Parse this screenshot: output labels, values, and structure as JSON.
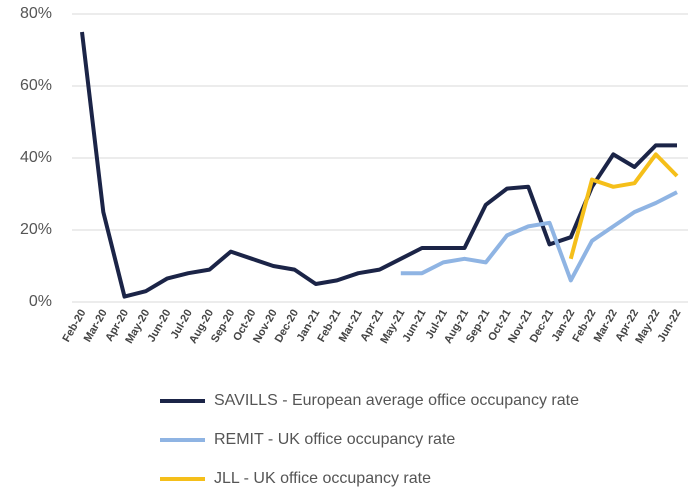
{
  "chart_data": {
    "type": "line",
    "categories": [
      "Feb-20",
      "Mar-20",
      "Apr-20",
      "May-20",
      "Jun-20",
      "Jul-20",
      "Aug-20",
      "Sep-20",
      "Oct-20",
      "Nov-20",
      "Dec-20",
      "Jan-21",
      "Feb-21",
      "Mar-21",
      "Apr-21",
      "May-21",
      "Jun-21",
      "Jul-21",
      "Aug-21",
      "Sep-21",
      "Oct-21",
      "Nov-21",
      "Dec-21",
      "Jan-22",
      "Feb-22",
      "Mar-22",
      "Apr-22",
      "May-22",
      "Jun-22"
    ],
    "series": [
      {
        "name": "SAVILLS - European average office occupancy rate",
        "color": "#1b2447",
        "values": [
          75,
          25,
          1.5,
          3,
          6.5,
          8,
          9,
          14,
          12,
          10,
          9,
          5,
          6,
          8,
          9,
          12,
          15,
          15,
          15,
          27,
          31.5,
          32,
          16,
          18,
          32,
          41,
          37.5,
          43.5,
          43.5
        ]
      },
      {
        "name": "REMIT - UK office occupancy rate",
        "color": "#8fb4e3",
        "values": [
          null,
          null,
          null,
          null,
          null,
          null,
          null,
          null,
          null,
          null,
          null,
          null,
          null,
          null,
          null,
          8,
          8,
          11,
          12,
          11,
          18.5,
          21,
          22,
          6,
          17,
          21,
          25,
          27.5,
          30.5
        ]
      },
      {
        "name": "JLL - UK office occupancy rate",
        "color": "#f5bf1a",
        "values": [
          null,
          null,
          null,
          null,
          null,
          null,
          null,
          null,
          null,
          null,
          null,
          null,
          null,
          null,
          null,
          null,
          null,
          null,
          null,
          null,
          null,
          null,
          null,
          12,
          34,
          32,
          33,
          41,
          35
        ]
      }
    ],
    "ylim": [
      0,
      80
    ],
    "yticks": [
      {
        "value": 0,
        "label": "0%"
      },
      {
        "value": 20,
        "label": "20%"
      },
      {
        "value": 40,
        "label": "40%"
      },
      {
        "value": 60,
        "label": "60%"
      },
      {
        "value": 80,
        "label": "80%"
      }
    ],
    "grid": true,
    "legend": "bottom"
  }
}
